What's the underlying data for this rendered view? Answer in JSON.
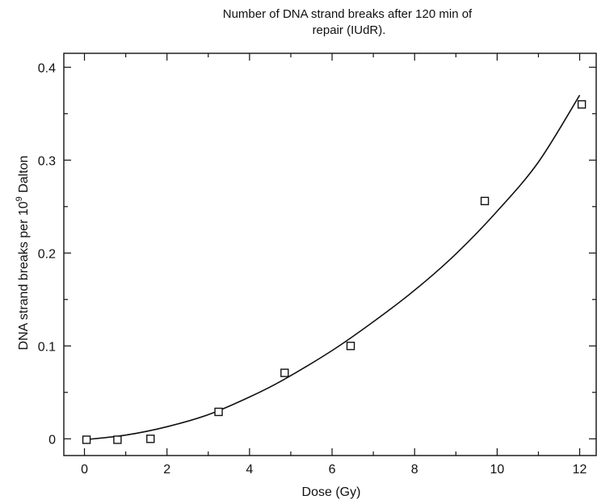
{
  "chart_data": {
    "type": "scatter",
    "title_lines": [
      "Number of DNA strand breaks after 120 min of",
      "repair (IUdR)."
    ],
    "xlabel": "Dose (Gy)",
    "ylabel": {
      "prefix": "DNA strand breaks per 10",
      "superscript": "9",
      "suffix": " Dalton"
    },
    "xlim": [
      -0.5,
      12.4
    ],
    "ylim": [
      -0.018,
      0.415
    ],
    "x_ticks": [
      0,
      2,
      4,
      6,
      8,
      10,
      12
    ],
    "x_tick_labels": [
      "0",
      "2",
      "4",
      "6",
      "8",
      "10",
      "12"
    ],
    "y_ticks": [
      0,
      0.1,
      0.2,
      0.3,
      0.4
    ],
    "y_tick_labels": [
      "0",
      "0.1",
      "0.2",
      "0.3",
      "0.4"
    ],
    "x_minor_step": 1,
    "y_minor_step": 0.05,
    "grid": false,
    "series": [
      {
        "marker": "open-square",
        "x": [
          0.05,
          0.8,
          1.6,
          3.25,
          4.85,
          6.45,
          9.7,
          12.05
        ],
        "y": [
          -0.001,
          -0.001,
          0.0,
          0.029,
          0.071,
          0.1,
          0.256,
          0.36
        ]
      }
    ],
    "fit_curve": {
      "x": [
        0,
        1,
        2,
        3,
        4,
        4.8,
        6,
        7,
        8,
        9,
        10,
        11,
        12
      ],
      "y": [
        -0.001,
        0.004,
        0.013,
        0.026,
        0.045,
        0.063,
        0.095,
        0.126,
        0.16,
        0.199,
        0.245,
        0.298,
        0.37
      ]
    }
  }
}
